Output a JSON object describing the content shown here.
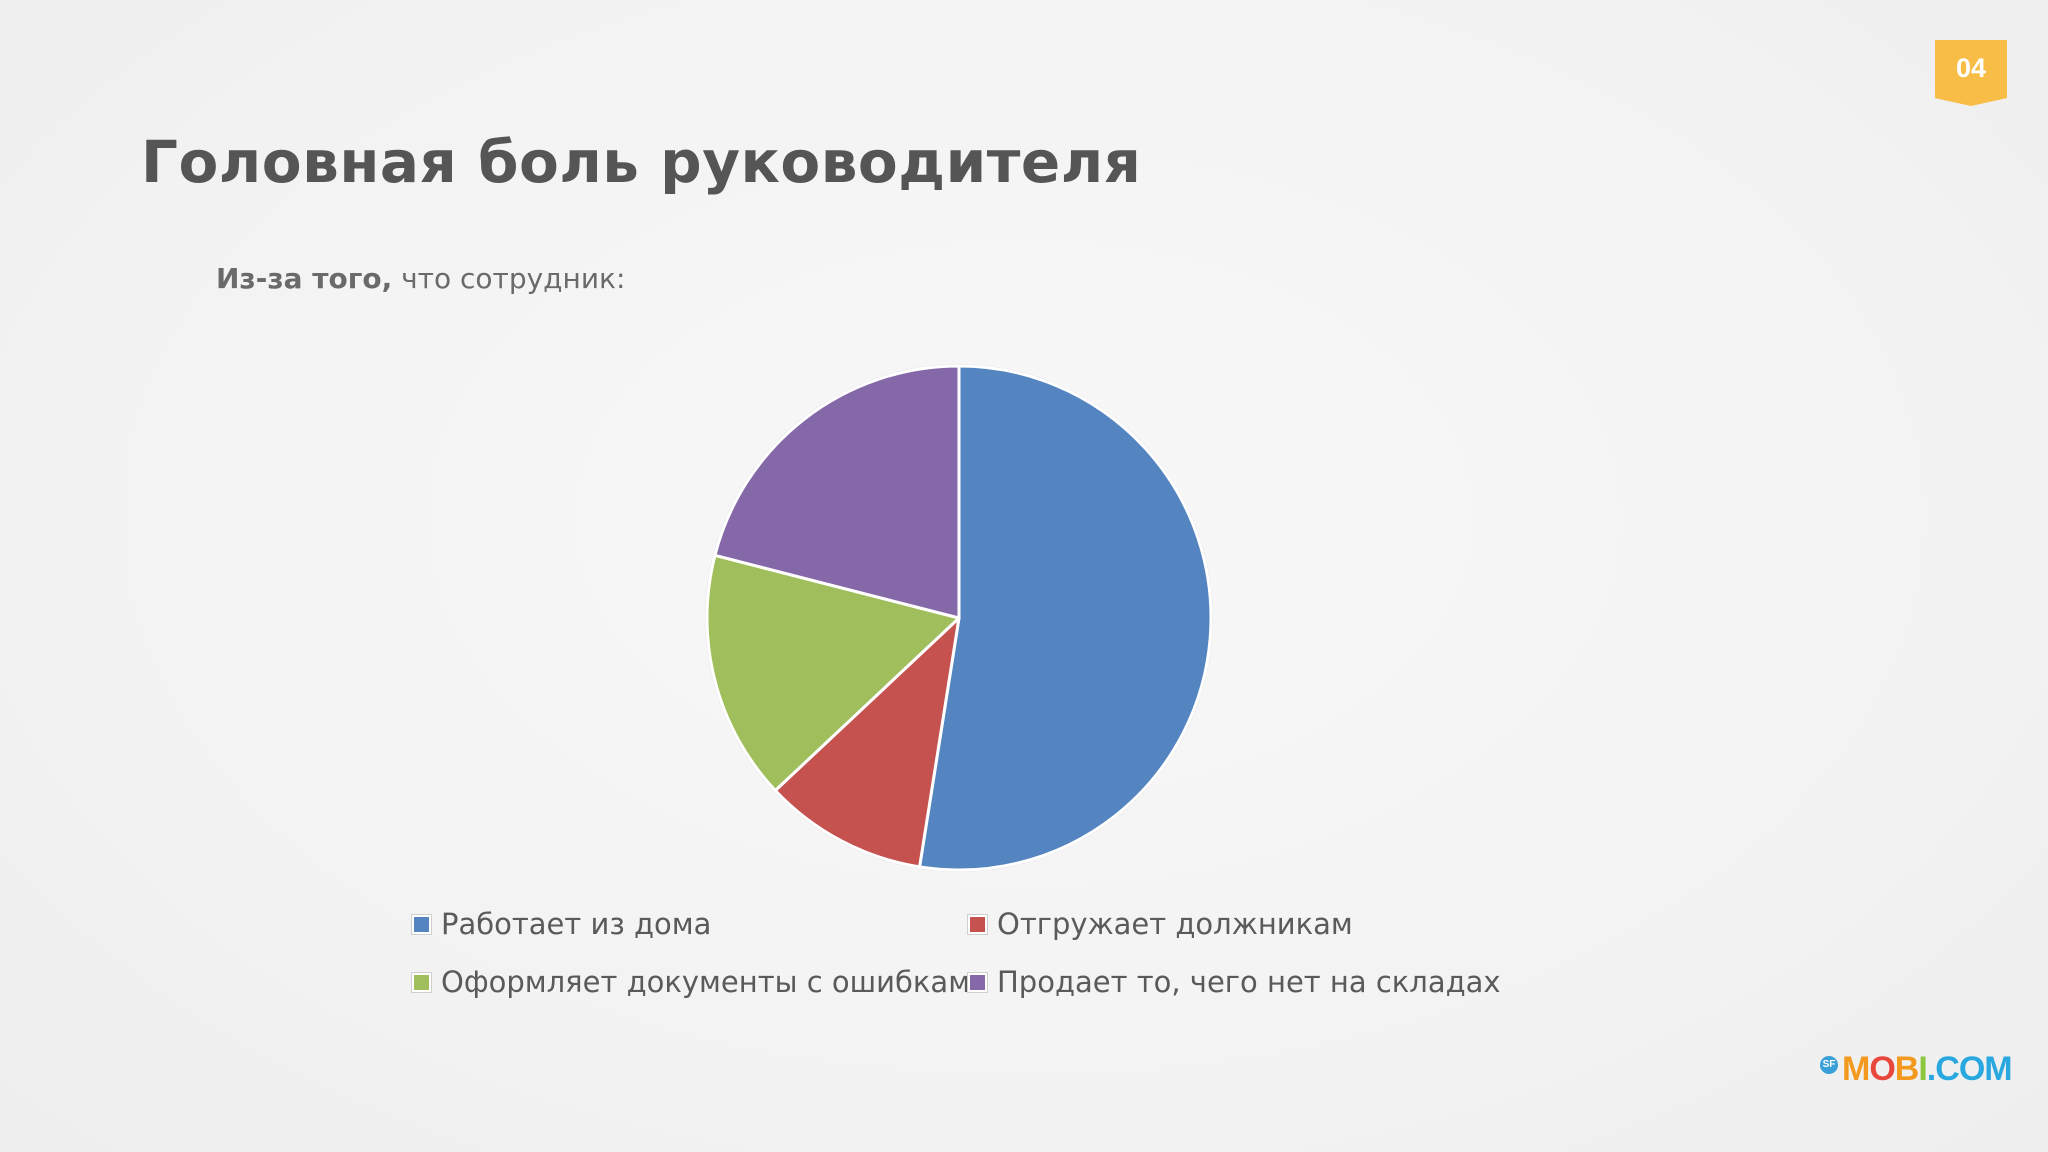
{
  "slide": {
    "page_number": "04",
    "title": "Головная боль руководителя",
    "subtitle_bold": "Из-за того,",
    "subtitle_rest": " что сотрудник:",
    "logo_text": "MOBI.COM",
    "colors": {
      "badge": "#f7bd47",
      "title": "#555555"
    }
  },
  "chart_data": {
    "type": "pie",
    "title": "",
    "series": [
      {
        "name": "Работает из дома",
        "value": 52.5,
        "color": "#5585c0"
      },
      {
        "name": "Отгружает должникам",
        "value": 10.5,
        "color": "#c5524f"
      },
      {
        "name": "Оформляет документы с ошибками",
        "value": 16,
        "color": "#a0be5c"
      },
      {
        "name": "Продает то, чего нет на складах",
        "value": 21,
        "color": "#8568a8"
      }
    ],
    "legend_position": "bottom",
    "start_angle_deg": 0,
    "direction": "clockwise"
  }
}
